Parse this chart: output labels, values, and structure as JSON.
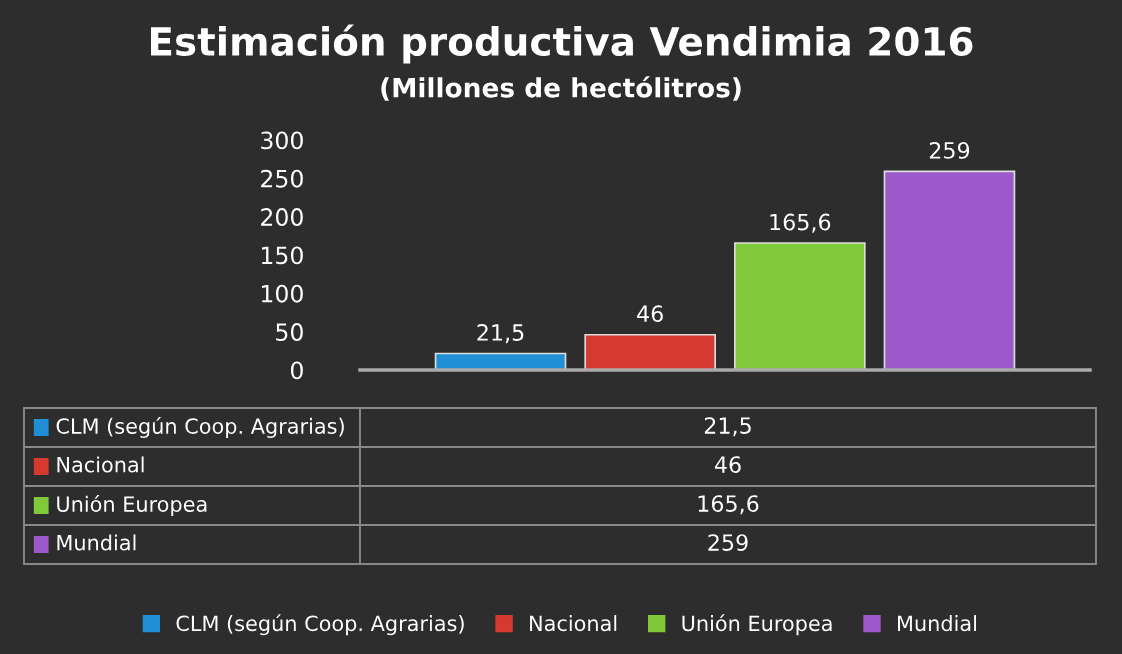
{
  "chart_data": {
    "type": "bar",
    "title": "Estimación productiva Vendimia 2016",
    "subtitle": "(Millones de hectólitros)",
    "categories": [
      null
    ],
    "series": [
      {
        "name": "CLM (según Coop. Agrarias)",
        "color": "#1f8fd6",
        "values": [
          21.5
        ],
        "value_labels": [
          "21,5"
        ]
      },
      {
        "name": "Nacional",
        "color": "#d43a2f",
        "values": [
          46
        ],
        "value_labels": [
          "46"
        ]
      },
      {
        "name": "Unión Europea",
        "color": "#7fc93a",
        "values": [
          165.6
        ],
        "value_labels": [
          "165,6"
        ]
      },
      {
        "name": "Mundial",
        "color": "#9b59c9",
        "values": [
          259
        ],
        "value_labels": [
          "259"
        ]
      }
    ],
    "ylim": [
      0,
      300
    ],
    "yticks": [
      0,
      50,
      100,
      150,
      200,
      250,
      300
    ],
    "grid": false,
    "legend": "bottom"
  }
}
